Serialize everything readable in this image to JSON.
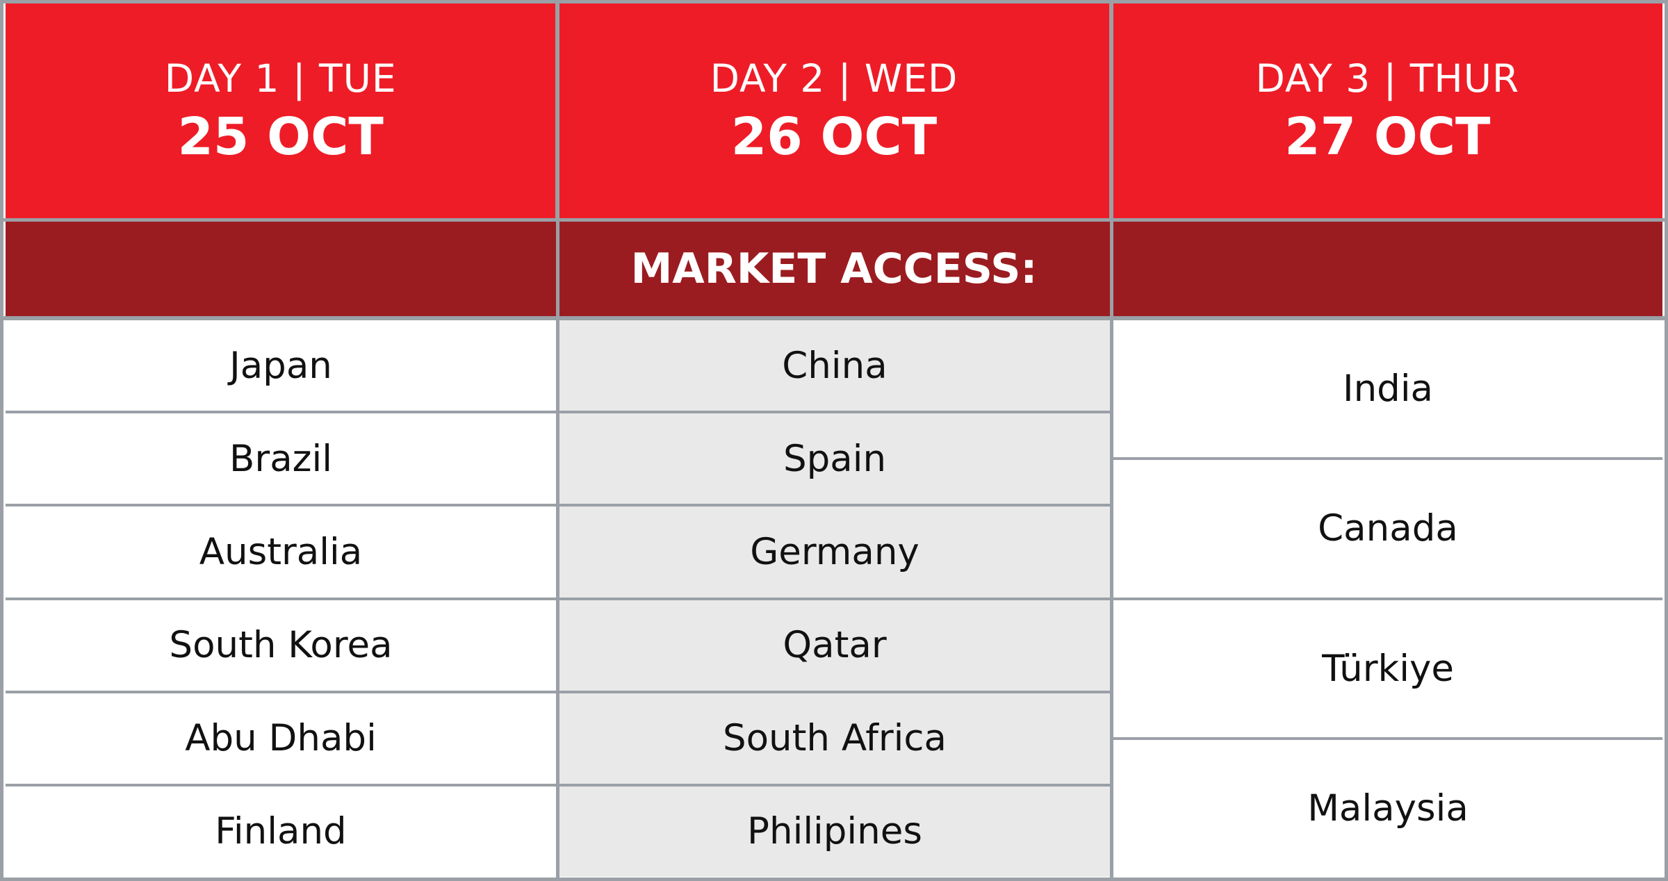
{
  "days": [
    {
      "day_label": "DAY 1 | TUE",
      "date": "25 OCT"
    },
    {
      "day_label": "DAY 2 | WED",
      "date": "26 OCT"
    },
    {
      "day_label": "DAY 3 | THUR",
      "date": "27 OCT"
    }
  ],
  "section_title": "MARKET ACCESS:",
  "columns": [
    [
      "Japan",
      "Brazil",
      "Australia",
      "South Korea",
      "Abu Dhabi",
      "Finland"
    ],
    [
      "China",
      "Spain",
      "Germany",
      "Qatar",
      "South Africa",
      "Philipines"
    ],
    [
      "India",
      "Canada",
      "Türkiye",
      "Malaysia"
    ]
  ],
  "colors": {
    "header_red": "#ee1c27",
    "section_dark_red": "#9b1c20",
    "grid_gray": "#9aa0a6",
    "shaded_column": "#e9e9e9"
  }
}
